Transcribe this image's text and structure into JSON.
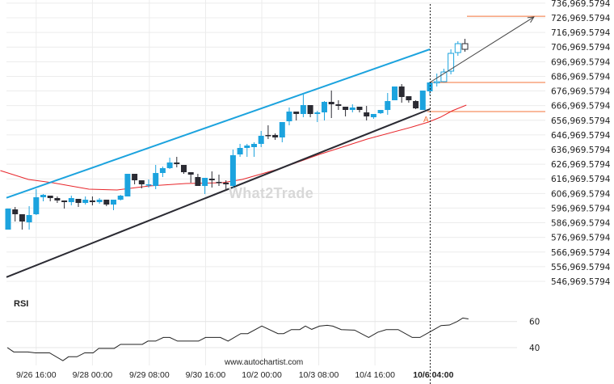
{
  "chart_data": {
    "type": "candlestick",
    "title": "",
    "watermark": "What2Trade",
    "source": "www.autochartist.com",
    "y_axis": {
      "ylim": [
        541969.5794,
        739969.5794
      ],
      "tick_labels": [
        "736,969.5794",
        "726,969.5794",
        "716,969.5794",
        "706,969.5794",
        "696,969.5794",
        "686,969.5794",
        "676,969.5794",
        "666,969.5794",
        "656,969.5794",
        "646,969.5794",
        "636,969.5794",
        "626,969.5794",
        "616,969.5794",
        "606,969.5794",
        "596,969.5794",
        "586,969.5794",
        "576,969.5794",
        "566,969.5794",
        "556,969.5794",
        "546,969.5794"
      ],
      "ticks": [
        736969.5794,
        726969.5794,
        716969.5794,
        706969.5794,
        696969.5794,
        686969.5794,
        676969.5794,
        666969.5794,
        656969.5794,
        646969.5794,
        636969.5794,
        626969.5794,
        616969.5794,
        606969.5794,
        596969.5794,
        586969.5794,
        576969.5794,
        566969.5794,
        556969.5794,
        546969.5794
      ]
    },
    "x_axis": {
      "tick_labels": [
        "9/26 16:00",
        "9/28 00:00",
        "9/29 08:00",
        "9/30 16:00",
        "10/2 00:00",
        "10/3 08:00",
        "10/4 16:00",
        "10/6 04:00"
      ],
      "tick_index": [
        4,
        12,
        20.1,
        28.1,
        36.1,
        44.2,
        52.2,
        60.5
      ],
      "highlight_label": "10/6 04:00",
      "current_index": 60
    },
    "candles_ohlc_note": "[open, high, low, close]",
    "candles": [
      [
        582293,
        596650,
        582293,
        596650
      ],
      [
        596098,
        597754,
        587815,
        592784
      ],
      [
        592784,
        592784,
        582293,
        587815
      ],
      [
        587262,
        598306,
        582293,
        592232
      ],
      [
        592784,
        609903,
        592232,
        604381
      ],
      [
        604381,
        606589,
        601620,
        606037
      ],
      [
        605485,
        605485,
        601620,
        603828
      ],
      [
        603828,
        604933,
        600515,
        602172
      ],
      [
        602172,
        602172,
        596650,
        601067
      ],
      [
        601067,
        605485,
        598859,
        603828
      ],
      [
        603276,
        603276,
        597754,
        600515
      ],
      [
        600515,
        604933,
        599411,
        602724
      ],
      [
        602172,
        604933,
        598859,
        601067
      ],
      [
        601067,
        603828,
        599963,
        602724
      ],
      [
        602724,
        602724,
        598306,
        599411
      ],
      [
        599411,
        602724,
        595545,
        602724
      ],
      [
        602724,
        606037,
        602172,
        605485
      ],
      [
        604933,
        620394,
        604933,
        620394
      ],
      [
        620394,
        620394,
        613216,
        615977
      ],
      [
        615977,
        615977,
        610455,
        613216
      ],
      [
        612664,
        616529,
        611007,
        613216
      ],
      [
        612111,
        626469,
        609903,
        620947
      ],
      [
        620947,
        625364,
        618186,
        624260
      ],
      [
        624260,
        631438,
        623708,
        628125
      ],
      [
        628125,
        631991,
        624812,
        627021
      ],
      [
        626469,
        626469,
        620394,
        621499
      ],
      [
        621499,
        621499,
        614320,
        619842
      ],
      [
        618186,
        620394,
        612111,
        612111
      ],
      [
        612111,
        617633,
        606589,
        617633
      ],
      [
        617081,
        622051,
        611007,
        615977
      ],
      [
        614872,
        619842,
        612111,
        614320
      ],
      [
        614320,
        615977,
        609903,
        613216
      ],
      [
        612111,
        636960,
        611007,
        633095
      ],
      [
        633647,
        640826,
        631991,
        638065
      ],
      [
        638065,
        640826,
        631991,
        639721
      ],
      [
        638617,
        641930,
        631991,
        640826
      ],
      [
        640826,
        649661,
        638617,
        646348
      ],
      [
        646900,
        653526,
        644139,
        646348
      ],
      [
        646900,
        648004,
        643587,
        645243
      ],
      [
        645243,
        655735,
        641930,
        655735
      ],
      [
        656287,
        665675,
        653526,
        662914
      ],
      [
        662914,
        662914,
        656840,
        661257
      ],
      [
        661257,
        674510,
        659048,
        667331
      ],
      [
        667331,
        667331,
        659048,
        661257
      ],
      [
        661257,
        663466,
        655735,
        662362
      ],
      [
        662362,
        670092,
        656840,
        669540
      ],
      [
        669540,
        677271,
        658496,
        667884
      ],
      [
        667884,
        670645,
        664018,
        666779
      ],
      [
        666227,
        666227,
        659601,
        664018
      ],
      [
        664018,
        667884,
        662362,
        665675
      ],
      [
        666227,
        666227,
        662362,
        664018
      ],
      [
        662362,
        666779,
        656840,
        659601
      ],
      [
        659048,
        661257,
        657944,
        661257
      ],
      [
        661809,
        664018,
        661257,
        664018
      ],
      [
        664018,
        675614,
        660705,
        670092
      ],
      [
        670645,
        680032,
        670645,
        680032
      ],
      [
        680032,
        681689,
        668988,
        672853
      ],
      [
        673406,
        673406,
        668988,
        670645
      ],
      [
        670092,
        670645,
        664570,
        665123
      ],
      [
        664018,
        677271,
        664018,
        677271
      ],
      [
        676719,
        683345,
        673958,
        682793
      ],
      [
        682793,
        688867,
        680032,
        683345
      ],
      [
        683345,
        692180,
        682793,
        689972
      ],
      [
        690524,
        705433,
        688315,
        702672
      ],
      [
        703224,
        710955,
        701016,
        709299
      ],
      [
        709299,
        712612,
        703777,
        705433
      ]
    ],
    "channel": {
      "upper": {
        "from": [
          0,
          604381
        ],
        "to": [
          60,
          705433
        ],
        "color": "#1ca3de"
      },
      "lower": {
        "from": [
          0,
          550265
        ],
        "to": [
          60,
          664570
        ],
        "color": "#2b2b33"
      }
    },
    "levels": {
      "target": 728000,
      "breakout": 682793,
      "support": 662914,
      "color": "#f4733a"
    },
    "forecast_arrow": {
      "from": [
        60,
        682793
      ],
      "to": [
        74,
        727500
      ]
    },
    "pattern_marker": "A",
    "moving_average": {
      "color": "#e8262b",
      "points": [
        [
          -1.1,
          622603
        ],
        [
          2.9,
          616529
        ],
        [
          6.3,
          614320
        ],
        [
          11.5,
          609903
        ],
        [
          15.5,
          609351
        ],
        [
          20.1,
          612111
        ],
        [
          25.3,
          613768
        ],
        [
          30.5,
          614320
        ],
        [
          33.3,
          616529
        ],
        [
          38.5,
          623708
        ],
        [
          44.3,
          633647
        ],
        [
          51.1,
          644139
        ],
        [
          57.5,
          652422
        ],
        [
          59.8,
          655735
        ],
        [
          61.5,
          659048
        ],
        [
          63.2,
          663466
        ],
        [
          65.2,
          667331
        ]
      ]
    },
    "colors": {
      "bull": "#1ca3de",
      "bear": "#2b2b33",
      "grid": "#ececec"
    },
    "rsi": {
      "title": "RSI",
      "ylim": [
        25,
        70
      ],
      "tick_labels": [
        "60",
        "40"
      ],
      "ticks": [
        60,
        40
      ],
      "points": [
        [
          -0.1,
          40
        ],
        [
          0.8,
          36.7
        ],
        [
          2.8,
          36.7
        ],
        [
          3.9,
          36
        ],
        [
          5.9,
          36
        ],
        [
          7.8,
          30
        ],
        [
          8.6,
          33
        ],
        [
          9.8,
          33
        ],
        [
          10.9,
          36
        ],
        [
          12.1,
          36
        ],
        [
          12.9,
          39.4
        ],
        [
          15.1,
          39.4
        ],
        [
          16,
          42.5
        ],
        [
          19.1,
          42.5
        ],
        [
          19.9,
          45
        ],
        [
          21,
          45
        ],
        [
          22.1,
          47.8
        ],
        [
          23,
          47.8
        ],
        [
          24.1,
          45
        ],
        [
          27.1,
          45
        ],
        [
          28.1,
          47.8
        ],
        [
          30.2,
          47.8
        ],
        [
          31.3,
          45
        ],
        [
          33.1,
          50.7
        ],
        [
          34.1,
          50.7
        ],
        [
          36.1,
          56.5
        ],
        [
          38.4,
          50.7
        ],
        [
          39.2,
          50.7
        ],
        [
          40.3,
          53.8
        ],
        [
          41.5,
          53.8
        ],
        [
          42.3,
          56.5
        ],
        [
          43.2,
          54
        ],
        [
          44.3,
          56.5
        ],
        [
          45.4,
          57.1
        ],
        [
          46.2,
          56.5
        ],
        [
          47.4,
          53.8
        ],
        [
          49.3,
          53.4
        ],
        [
          51.3,
          47.8
        ],
        [
          52.6,
          51.8
        ],
        [
          53.8,
          53.8
        ],
        [
          55.5,
          53.8
        ],
        [
          57.5,
          47.8
        ],
        [
          58.6,
          47.8
        ],
        [
          60.6,
          53.8
        ],
        [
          61.6,
          56.9
        ],
        [
          62.8,
          57.3
        ],
        [
          63.9,
          60
        ],
        [
          64.7,
          62.7
        ],
        [
          65.5,
          62
        ]
      ]
    }
  }
}
